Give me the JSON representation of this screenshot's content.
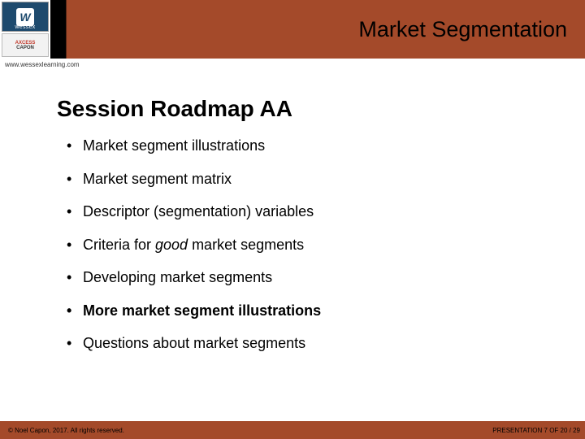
{
  "colors": {
    "header_accent": "#a44a2a",
    "header_black": "#000000",
    "logo_primary_bg": "#1e4a6d",
    "page_bg": "#ffffff",
    "text": "#000000"
  },
  "logo": {
    "primary_letter": "W",
    "primary_brand": "wessex",
    "secondary_line1": "AXCESS",
    "secondary_line2": "CAPON"
  },
  "header": {
    "title": "Market Segmentation"
  },
  "url": "www.wessexlearning.com",
  "content": {
    "heading": "Session Roadmap AA",
    "bullets": [
      {
        "text": "Market segment illustrations",
        "bold": false
      },
      {
        "text": "Market segment matrix",
        "bold": false
      },
      {
        "text": "Descriptor (segmentation) variables",
        "bold": false
      },
      {
        "text_pre": "Criteria for ",
        "text_italic": "good",
        "text_post": " market segments",
        "bold": false,
        "has_italic": true
      },
      {
        "text": "Developing market segments",
        "bold": false
      },
      {
        "text": "More market segment illustrations",
        "bold": true
      },
      {
        "text": "Questions about market segments",
        "bold": false
      }
    ]
  },
  "footer": {
    "left": "© Noel Capon, 2017. All rights reserved.",
    "right": "PRESENTATION 7 OF 20 / 29"
  },
  "typography": {
    "title_fontsize": 27,
    "heading_fontsize": 28,
    "bullet_fontsize": 18,
    "footer_fontsize": 8,
    "url_fontsize": 8
  }
}
